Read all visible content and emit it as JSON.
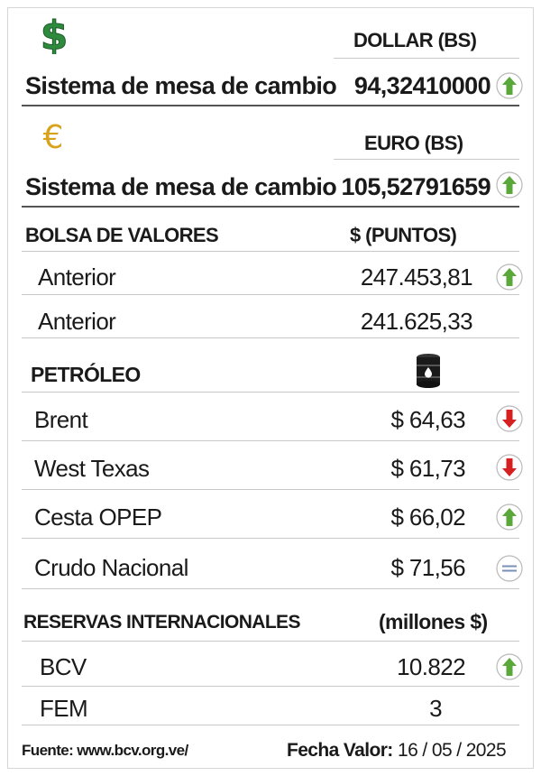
{
  "dollar": {
    "symbol_icon": "dollar-sign-icon",
    "header": "DOLLAR (BS)",
    "label": "Sistema de mesa de cambio",
    "value": "94,32410000",
    "trend": "up"
  },
  "euro": {
    "symbol_icon": "euro-sign-icon",
    "header": "EURO (BS)",
    "label": "Sistema de mesa de cambio",
    "value": "105,52791659",
    "trend": "up"
  },
  "bolsa": {
    "header_left": "BOLSA DE VALORES",
    "header_right": "$ (PUNTOS)",
    "rows": [
      {
        "label": "Anterior",
        "value": "247.453,81",
        "trend": "up"
      },
      {
        "label": "Anterior",
        "value": "241.625,33",
        "trend": "none"
      }
    ]
  },
  "petroleo": {
    "header": "PETRÓLEO",
    "header_icon": "oil-barrel-icon",
    "rows": [
      {
        "label": "Brent",
        "value": "$ 64,63",
        "trend": "down"
      },
      {
        "label": "West Texas",
        "value": "$ 61,73",
        "trend": "down"
      },
      {
        "label": "Cesta OPEP",
        "value": "$ 66,02",
        "trend": "up"
      },
      {
        "label": "Crudo Nacional",
        "value": "$ 71,56",
        "trend": "equal"
      }
    ]
  },
  "reservas": {
    "header_left": "RESERVAS INTERNACIONALES",
    "header_right": "(millones $)",
    "rows": [
      {
        "label": "BCV",
        "value": "10.822",
        "trend": "up"
      },
      {
        "label": "FEM",
        "value": "3",
        "trend": "none"
      }
    ]
  },
  "footer": {
    "source": "Fuente: www.bcv.org.ve/",
    "date_label": "Fecha Valor:",
    "date_value": "16 / 05 / 2025"
  },
  "colors": {
    "dollar_green": "#2e8b3e",
    "euro_gold": "#d9a21b",
    "up_green": "#5aa83a",
    "down_red": "#d62020",
    "equal_blue": "#7a8fb8"
  }
}
